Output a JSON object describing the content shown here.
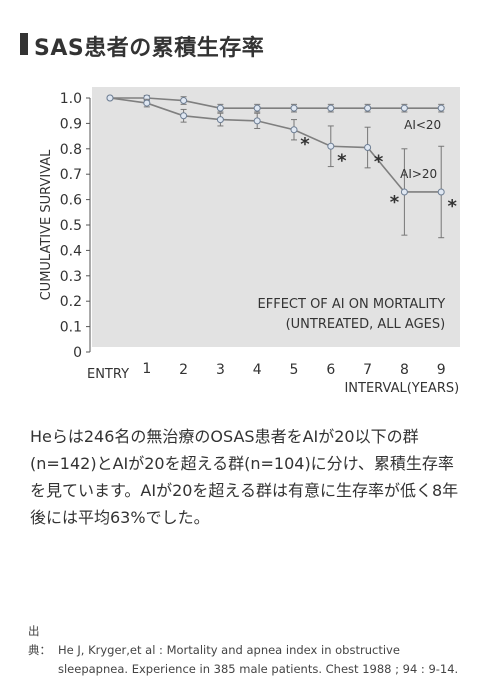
{
  "heading": "SAS患者の累積生存率",
  "paragraph": [
    "Heらは246名の無治療のOSAS患者をAIが20以下の群",
    "(n=142)とAIが20を超える群(n=104)に分け、累積生存率",
    "を見ています。AIが20を超える群は有意に生存率が低く8年",
    "後には平均63%でした。"
  ],
  "source": {
    "label": "出典：",
    "line1": "He J, Kryger,et al : Mortality and apnea index in obstructive",
    "line2": "sleepapnea. Experience in 385 male patients. Chest 1988 ; 94 : 9-14."
  },
  "chart_data": {
    "type": "line",
    "ylabel": "CUMULATIVE SURVIVAL",
    "xlabel": "INTERVAL(YEARS)",
    "annotation": [
      "EFFECT OF AI ON MORTALITY",
      "(UNTREATED, ALL AGES)"
    ],
    "x_ticks": [
      "ENTRY",
      "1",
      "2",
      "3",
      "4",
      "5",
      "6",
      "7",
      "8",
      "9"
    ],
    "y_ticks": [
      "0",
      "0.1",
      "0.2",
      "0.3",
      "0.4",
      "0.5",
      "0.6",
      "0.7",
      "0.8",
      "0.9",
      "1.0"
    ],
    "ylim": [
      0,
      1.0
    ],
    "grid": false,
    "colors": {
      "panel": "#e2e2e2",
      "line": "#7f7f7f",
      "marker": "#dfe7f2",
      "marker_edge": "#6f7f94"
    },
    "series": [
      {
        "name": "AI<20",
        "x": [
          0,
          1,
          2,
          3,
          4,
          5,
          6,
          7,
          8,
          9
        ],
        "y": [
          1.0,
          1.0,
          0.99,
          0.96,
          0.96,
          0.96,
          0.96,
          0.96,
          0.96,
          0.96
        ],
        "err": [
          0,
          0.01,
          0.015,
          0.015,
          0.015,
          0.015,
          0.015,
          0.015,
          0.015,
          0.015
        ]
      },
      {
        "name": "AI>20",
        "x": [
          0,
          1,
          2,
          3,
          4,
          5,
          6,
          7,
          8,
          9
        ],
        "y": [
          1.0,
          0.98,
          0.93,
          0.915,
          0.91,
          0.875,
          0.81,
          0.805,
          0.63,
          0.63
        ],
        "err": [
          0,
          0.015,
          0.025,
          0.025,
          0.03,
          0.04,
          0.08,
          0.08,
          0.17,
          0.18
        ],
        "significant": [
          false,
          false,
          false,
          false,
          false,
          true,
          true,
          true,
          true,
          true
        ]
      }
    ],
    "significance_mark": "*"
  }
}
